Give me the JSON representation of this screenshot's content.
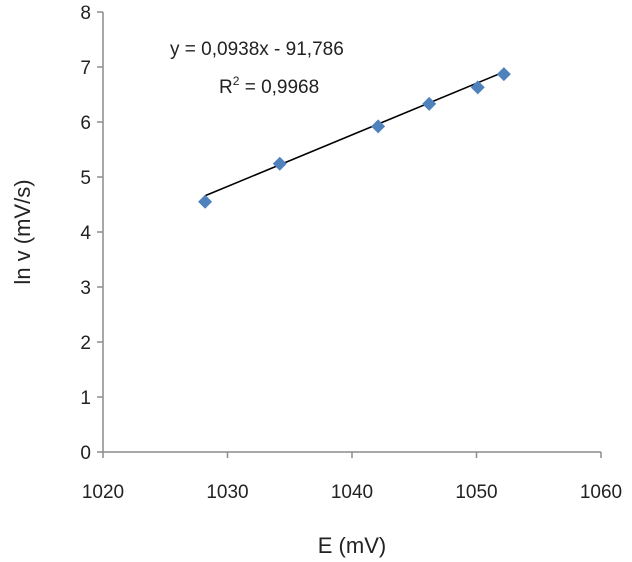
{
  "chart_data": {
    "type": "scatter",
    "xlabel": "E (mV)",
    "ylabel": "ln v (mV/s)",
    "xlim": [
      1020,
      1060
    ],
    "ylim": [
      0,
      8
    ],
    "x_ticks": [
      "1020",
      "1030",
      "1040",
      "1050",
      "1060"
    ],
    "y_ticks": [
      "0",
      "1",
      "2",
      "3",
      "4",
      "5",
      "6",
      "7",
      "8"
    ],
    "grid": false,
    "series": [
      {
        "marker": "diamond",
        "color": "#4f81bd",
        "points": [
          {
            "x": 1028.2,
            "y": 4.55
          },
          {
            "x": 1034.2,
            "y": 5.24
          },
          {
            "x": 1042.1,
            "y": 5.92
          },
          {
            "x": 1046.2,
            "y": 6.33
          },
          {
            "x": 1050.1,
            "y": 6.63
          },
          {
            "x": 1052.2,
            "y": 6.87
          }
        ]
      }
    ],
    "trendline": {
      "slope": 0.0938,
      "intercept": -91.786,
      "x_range": [
        1028.2,
        1052.2
      ],
      "color": "#000000",
      "equation_label": "y = 0,0938x - 91,786",
      "r2_label_prefix": "R",
      "r2_label_sup": "2",
      "r2_label_value": " = 0,9968"
    }
  }
}
